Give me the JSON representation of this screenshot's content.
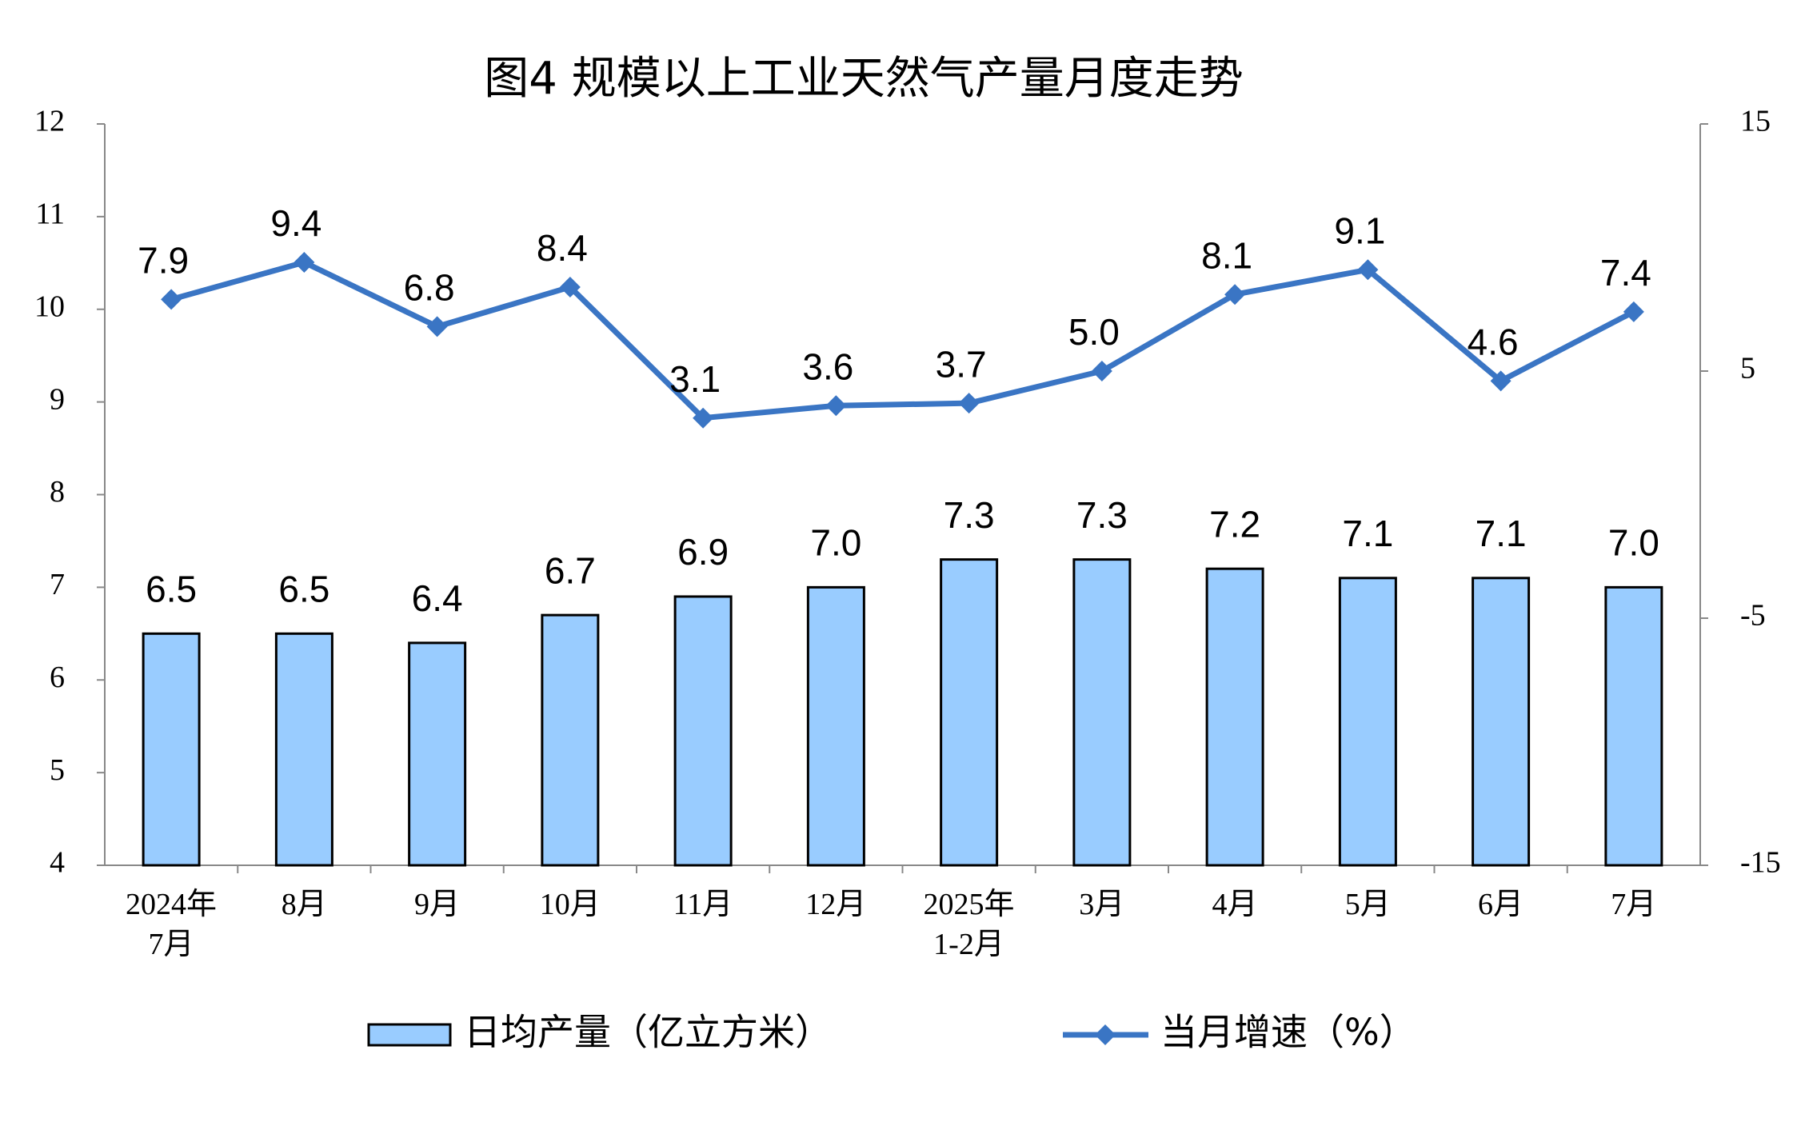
{
  "chart_data": {
    "type": "bar",
    "title": "图4  规模以上工业天然气产量月度走势",
    "categories": [
      "2024年\n7月",
      "8月",
      "9月",
      "10月",
      "11月",
      "12月",
      "2025年\n1-2月",
      "3月",
      "4月",
      "5月",
      "6月",
      "7月"
    ],
    "series": [
      {
        "name": "日均产量（亿立方米）",
        "type": "bar",
        "color": "#99ccff",
        "values": [
          6.5,
          6.5,
          6.4,
          6.7,
          6.9,
          7.0,
          7.3,
          7.3,
          7.2,
          7.1,
          7.1,
          7.0
        ],
        "value_labels": [
          "6.5",
          "6.5",
          "6.4",
          "6.7",
          "6.9",
          "7.0",
          "7.3",
          "7.3",
          "7.2",
          "7.1",
          "7.1",
          "7.0"
        ]
      },
      {
        "name": "当月增速（%）",
        "type": "line",
        "axis": "y2",
        "color": "#3a75c4",
        "values": [
          7.9,
          9.4,
          6.8,
          8.4,
          3.1,
          3.6,
          3.7,
          5.0,
          8.1,
          9.1,
          4.6,
          7.4
        ],
        "value_labels": [
          "7.9",
          "9.4",
          "6.8",
          "8.4",
          "3.1",
          "3.6",
          "3.7",
          "5.0",
          "8.1",
          "9.1",
          "4.6",
          "7.4"
        ]
      }
    ],
    "ylim": [
      4,
      12
    ],
    "yticks": [
      4,
      5,
      6,
      7,
      8,
      9,
      10,
      11,
      12
    ],
    "y2lim": [
      -15,
      15
    ],
    "y2ticks": [
      -15,
      -5,
      5,
      15
    ],
    "grid": false,
    "legend": "bottom"
  }
}
